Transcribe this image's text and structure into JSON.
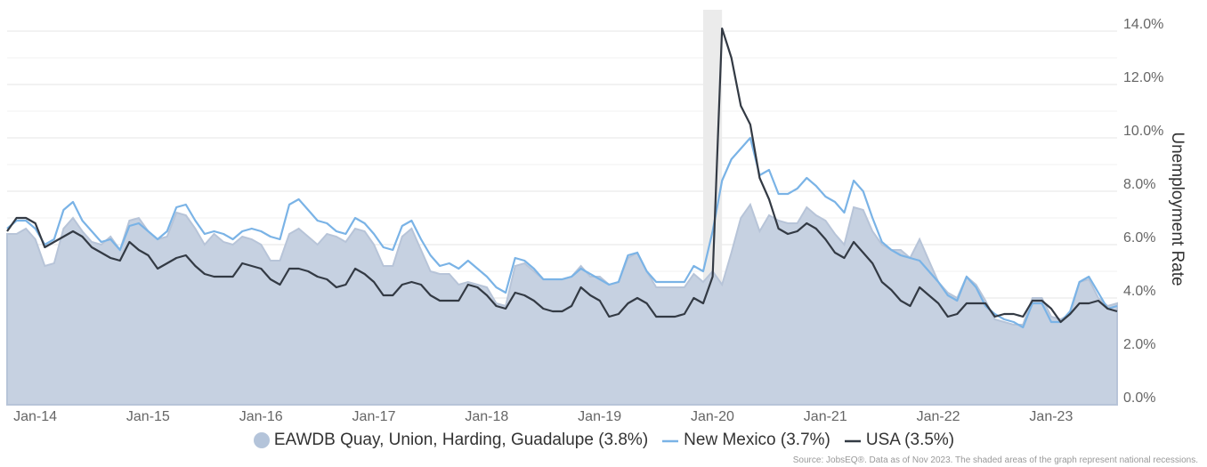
{
  "chart_data": {
    "type": "line",
    "y_axis_label": "Unemployment Rate",
    "source": "Source: JobsEQ®. Data as of Nov 2023. The shaded areas of the graph represent national recessions.",
    "categories": [
      null,
      "Jan-14",
      null,
      null,
      null,
      null,
      null,
      null,
      null,
      null,
      null,
      null,
      null,
      "Jan-15",
      null,
      null,
      null,
      null,
      null,
      null,
      null,
      null,
      null,
      null,
      null,
      "Jan-16",
      null,
      null,
      null,
      null,
      null,
      null,
      null,
      null,
      null,
      null,
      null,
      "Jan-17",
      null,
      null,
      null,
      null,
      null,
      null,
      null,
      null,
      null,
      null,
      null,
      "Jan-18",
      null,
      null,
      null,
      null,
      null,
      null,
      null,
      null,
      null,
      null,
      null,
      "Jan-19",
      null,
      null,
      null,
      null,
      null,
      null,
      null,
      null,
      null,
      null,
      null,
      "Jan-20",
      null,
      null,
      null,
      null,
      null,
      null,
      null,
      null,
      null,
      null,
      null,
      "Jan-21",
      null,
      null,
      null,
      null,
      null,
      null,
      null,
      null,
      null,
      null,
      null,
      "Jan-22",
      null,
      null,
      null,
      null,
      null,
      null,
      null,
      null,
      null,
      null,
      null,
      "Jan-23",
      null,
      null,
      null,
      null,
      null,
      null,
      null,
      null,
      null
    ],
    "recession_span": [
      74,
      76
    ],
    "ylim": [
      0,
      14.8
    ],
    "yticks": [
      {
        "value": 0,
        "label": "0.0%"
      },
      {
        "value": 2,
        "label": "2.0%"
      },
      {
        "value": 4,
        "label": "4.0%"
      },
      {
        "value": 6,
        "label": "6.0%"
      },
      {
        "value": 8,
        "label": "8.0%"
      },
      {
        "value": 10,
        "label": "10.0%"
      },
      {
        "value": 12,
        "label": "12.0%"
      },
      {
        "value": 14,
        "label": "14.0%"
      }
    ],
    "minor_yticks": [
      1,
      3,
      5,
      7,
      9,
      11,
      13
    ],
    "grid": true,
    "series": [
      {
        "name": "EAWDB Quay, Union, Harding, Guadalupe (3.8%)",
        "style": "area",
        "color": "#c6d1e1",
        "values": [
          6.4,
          6.4,
          6.6,
          6.2,
          5.2,
          5.3,
          6.6,
          7.0,
          6.5,
          6.1,
          6.0,
          6.3,
          5.8,
          6.9,
          7.0,
          6.5,
          6.2,
          6.3,
          7.2,
          7.1,
          6.6,
          6.0,
          6.4,
          6.1,
          6.0,
          6.3,
          6.2,
          6.0,
          5.4,
          5.4,
          6.4,
          6.6,
          6.3,
          6.0,
          6.4,
          6.3,
          6.1,
          6.6,
          6.5,
          6.0,
          5.2,
          5.2,
          6.3,
          6.6,
          5.8,
          5.0,
          4.9,
          4.9,
          4.5,
          4.6,
          4.5,
          4.4,
          3.8,
          3.7,
          5.2,
          5.3,
          5.0,
          4.7,
          4.7,
          4.7,
          4.8,
          5.2,
          4.8,
          4.8,
          4.5,
          4.6,
          5.5,
          5.7,
          5.0,
          4.4,
          4.4,
          4.4,
          4.4,
          4.9,
          4.6,
          5.0,
          4.5,
          5.7,
          7.0,
          7.5,
          6.5,
          7.1,
          6.9,
          6.8,
          6.8,
          7.4,
          7.1,
          6.9,
          6.4,
          6.0,
          7.4,
          7.3,
          6.5,
          6.0,
          5.8,
          5.8,
          5.5,
          6.2,
          5.4,
          4.6,
          4.2,
          4.0,
          4.8,
          4.5,
          3.9,
          3.2,
          3.1,
          3.0,
          3.0,
          4.0,
          4.0,
          3.3,
          3.2,
          3.4,
          4.6,
          4.7,
          4.0,
          3.7,
          3.8
        ]
      },
      {
        "name": "New Mexico (3.7%)",
        "style": "line",
        "color": "#7ab3e6",
        "values": [
          6.6,
          6.9,
          6.9,
          6.6,
          6.0,
          6.2,
          7.3,
          7.6,
          6.9,
          6.5,
          6.1,
          6.2,
          5.8,
          6.7,
          6.8,
          6.5,
          6.2,
          6.5,
          7.4,
          7.5,
          6.9,
          6.4,
          6.5,
          6.4,
          6.2,
          6.5,
          6.6,
          6.5,
          6.3,
          6.2,
          7.5,
          7.7,
          7.3,
          6.9,
          6.8,
          6.5,
          6.4,
          7.0,
          6.8,
          6.4,
          5.9,
          5.8,
          6.7,
          6.9,
          6.2,
          5.6,
          5.2,
          5.3,
          5.1,
          5.4,
          5.1,
          4.8,
          4.4,
          4.2,
          5.5,
          5.4,
          5.1,
          4.7,
          4.7,
          4.7,
          4.8,
          5.1,
          4.9,
          4.7,
          4.5,
          4.6,
          5.6,
          5.7,
          5.0,
          4.6,
          4.6,
          4.6,
          4.6,
          5.2,
          5.0,
          6.5,
          8.4,
          9.2,
          9.6,
          10.0,
          8.6,
          8.8,
          7.9,
          7.9,
          8.1,
          8.5,
          8.2,
          7.8,
          7.6,
          7.2,
          8.4,
          8.0,
          7.0,
          6.1,
          5.8,
          5.6,
          5.5,
          5.4,
          5.0,
          4.6,
          4.1,
          3.9,
          4.8,
          4.4,
          3.7,
          3.4,
          3.2,
          3.1,
          2.9,
          3.8,
          3.8,
          3.1,
          3.1,
          3.5,
          4.6,
          4.8,
          4.2,
          3.6,
          3.7
        ]
      },
      {
        "name": "USA (3.5%)",
        "style": "line",
        "color": "#333a44",
        "values": [
          6.5,
          7.0,
          7.0,
          6.8,
          5.9,
          6.1,
          6.3,
          6.5,
          6.3,
          5.9,
          5.7,
          5.5,
          5.4,
          6.1,
          5.8,
          5.6,
          5.1,
          5.3,
          5.5,
          5.6,
          5.2,
          4.9,
          4.8,
          4.8,
          4.8,
          5.3,
          5.2,
          5.1,
          4.7,
          4.5,
          5.1,
          5.1,
          5.0,
          4.8,
          4.7,
          4.4,
          4.5,
          5.1,
          4.9,
          4.6,
          4.1,
          4.1,
          4.5,
          4.6,
          4.5,
          4.1,
          3.9,
          3.9,
          3.9,
          4.5,
          4.4,
          4.1,
          3.7,
          3.6,
          4.2,
          4.1,
          3.9,
          3.6,
          3.5,
          3.5,
          3.7,
          4.4,
          4.1,
          3.9,
          3.3,
          3.4,
          3.8,
          4.0,
          3.8,
          3.3,
          3.3,
          3.3,
          3.4,
          4.0,
          3.8,
          4.8,
          14.1,
          13.0,
          11.2,
          10.5,
          8.5,
          7.7,
          6.6,
          6.4,
          6.5,
          6.8,
          6.6,
          6.2,
          5.7,
          5.5,
          6.1,
          5.7,
          5.3,
          4.6,
          4.3,
          3.9,
          3.7,
          4.4,
          4.1,
          3.8,
          3.3,
          3.4,
          3.8,
          3.8,
          3.8,
          3.3,
          3.4,
          3.4,
          3.3,
          3.9,
          3.9,
          3.6,
          3.1,
          3.4,
          3.8,
          3.8,
          3.9,
          3.6,
          3.5
        ]
      }
    ]
  }
}
